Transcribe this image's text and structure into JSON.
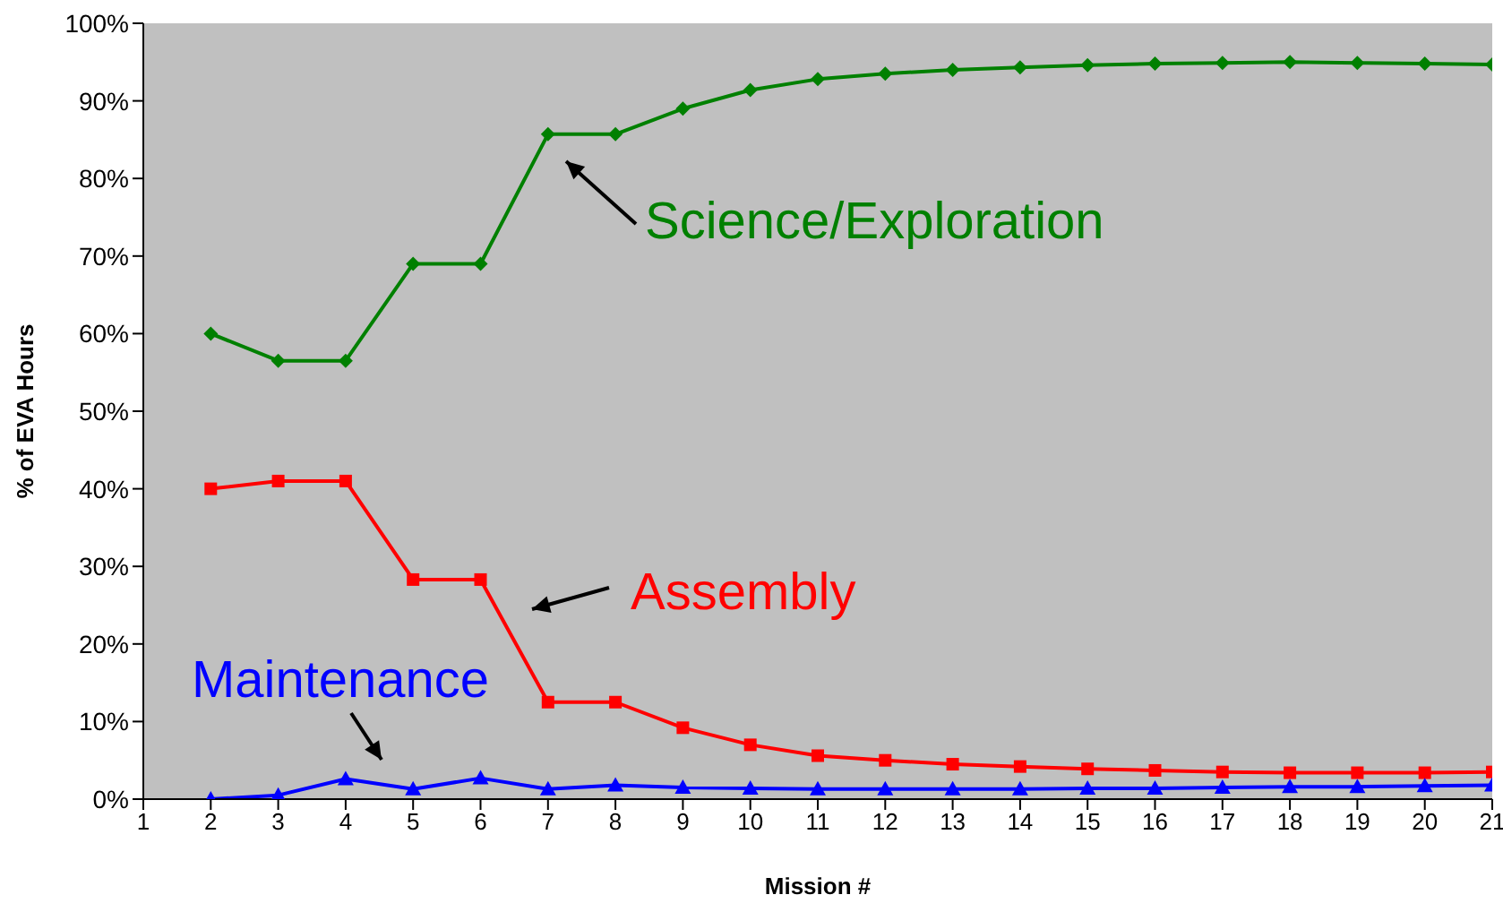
{
  "chart_data": {
    "type": "line",
    "xlabel": "Mission #",
    "ylabel": "% of EVA Hours",
    "x": [
      2,
      3,
      4,
      5,
      6,
      7,
      8,
      9,
      10,
      11,
      12,
      13,
      14,
      15,
      16,
      17,
      18,
      19,
      20,
      21
    ],
    "xlim": [
      1,
      21
    ],
    "xticks": [
      1,
      2,
      3,
      4,
      5,
      6,
      7,
      8,
      9,
      10,
      11,
      12,
      13,
      14,
      15,
      16,
      17,
      18,
      19,
      20,
      21
    ],
    "series": [
      {
        "name": "Science/Exploration",
        "color": "#008000",
        "marker": "diamond",
        "values": [
          60,
          56.5,
          56.5,
          69,
          69,
          85.7,
          85.7,
          89,
          91.4,
          92.8,
          93.5,
          94,
          94.3,
          94.6,
          94.8,
          94.9,
          95,
          94.9,
          94.8,
          94.7
        ]
      },
      {
        "name": "Assembly",
        "color": "#ff0000",
        "marker": "square",
        "values": [
          40,
          41,
          41,
          28.3,
          28.3,
          12.5,
          12.5,
          9.2,
          7,
          5.6,
          5,
          4.5,
          4.2,
          3.9,
          3.7,
          3.5,
          3.4,
          3.4,
          3.4,
          3.5
        ]
      },
      {
        "name": "Maintenance",
        "color": "#0000ff",
        "marker": "triangle",
        "values": [
          0,
          0.5,
          2.6,
          1.3,
          2.7,
          1.3,
          1.8,
          1.5,
          1.4,
          1.3,
          1.3,
          1.3,
          1.3,
          1.4,
          1.4,
          1.5,
          1.6,
          1.6,
          1.7,
          1.8
        ]
      }
    ],
    "ylim": [
      0,
      100
    ],
    "yticks": [
      {
        "value": 0,
        "label": "0%"
      },
      {
        "value": 10,
        "label": "10%"
      },
      {
        "value": 20,
        "label": "20%"
      },
      {
        "value": 30,
        "label": "30%"
      },
      {
        "value": 40,
        "label": "40%"
      },
      {
        "value": 50,
        "label": "50%"
      },
      {
        "value": 60,
        "label": "60%"
      },
      {
        "value": 70,
        "label": "70%"
      },
      {
        "value": 80,
        "label": "80%"
      },
      {
        "value": 90,
        "label": "90%"
      },
      {
        "value": 100,
        "label": "100%"
      }
    ]
  }
}
